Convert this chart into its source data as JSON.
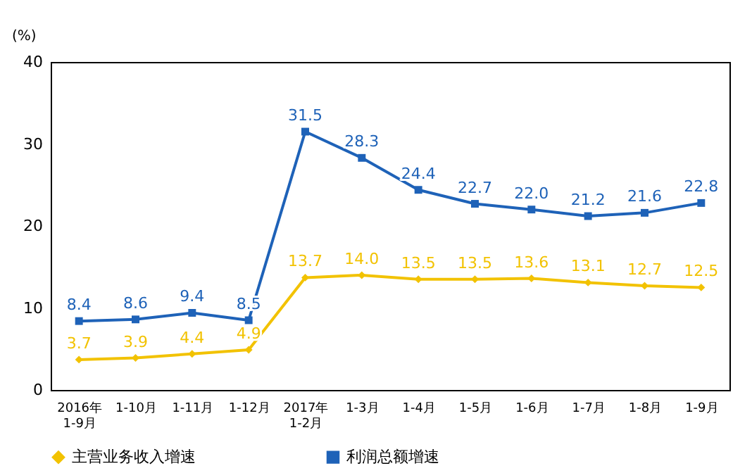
{
  "chart_data": {
    "type": "line",
    "ylabel": "(%)",
    "categories": [
      "2016年\n1-9月",
      "1-10月",
      "1-11月",
      "1-12月",
      "2017年\n1-2月",
      "1-3月",
      "1-4月",
      "1-5月",
      "1-6月",
      "1-7月",
      "1-8月",
      "1-9月"
    ],
    "series": [
      {
        "name": "主营业务收入增速",
        "color": "#f2c200",
        "marker": "diamond",
        "values": [
          3.7,
          3.9,
          4.4,
          4.9,
          13.7,
          14.0,
          13.5,
          13.5,
          13.6,
          13.1,
          12.7,
          12.5
        ],
        "value_labels": [
          "3.7",
          "3.9",
          "4.4",
          "4.9",
          "13.7",
          "14.0",
          "13.5",
          "13.5",
          "13.6",
          "13.1",
          "12.7",
          "12.5"
        ]
      },
      {
        "name": "利润总额增速",
        "color": "#1e62b8",
        "marker": "square",
        "values": [
          8.4,
          8.6,
          9.4,
          8.5,
          31.5,
          28.3,
          24.4,
          22.7,
          22.0,
          21.2,
          21.6,
          22.8
        ],
        "value_labels": [
          "8.4",
          "8.6",
          "9.4",
          "8.5",
          "31.5",
          "28.3",
          "24.4",
          "22.7",
          "22.0",
          "21.2",
          "21.6",
          "22.8"
        ]
      }
    ],
    "ylim": [
      0,
      40
    ],
    "yticks": [
      0,
      10,
      20,
      30,
      40
    ],
    "grid": false,
    "legend": "bottom"
  }
}
